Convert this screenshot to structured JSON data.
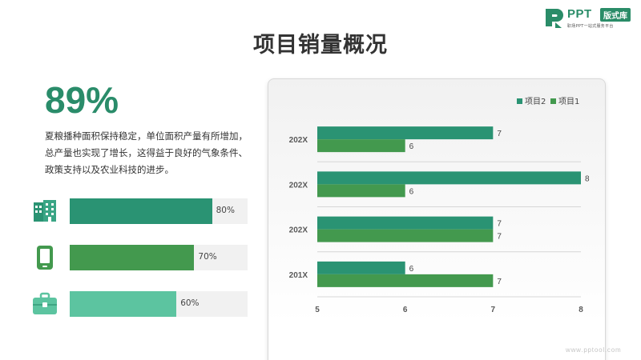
{
  "logo": {
    "brand": "PPT",
    "badge": "版式库",
    "tagline": "职场PPT一站式服务平台"
  },
  "title": "项目销量概况",
  "highlight": {
    "value": "89%",
    "description": "夏粮播种面积保持稳定，单位面积产量有所增加，总产量也实现了增长，这得益于良好的气象条件、政策支持以及农业科技的进步。"
  },
  "progress": [
    {
      "icon": "building-icon",
      "value": 80,
      "label": "80%",
      "color": "#2a9373"
    },
    {
      "icon": "tablet-icon",
      "value": 70,
      "label": "70%",
      "color": "#43994e"
    },
    {
      "icon": "briefcase-icon",
      "value": 60,
      "label": "60%",
      "color": "#5cc4a0"
    }
  ],
  "chart_data": {
    "type": "bar",
    "orientation": "horizontal",
    "categories": [
      "202X",
      "202X",
      "202X",
      "201X"
    ],
    "series": [
      {
        "name": "项目2",
        "values": [
          7,
          8,
          7,
          6
        ],
        "color": "#2a9373"
      },
      {
        "name": "项目1",
        "values": [
          6,
          6,
          7,
          7
        ],
        "color": "#43994e"
      }
    ],
    "xlim": [
      5,
      8
    ],
    "xticks": [
      "5",
      "6",
      "7",
      "8"
    ],
    "grid": true,
    "legend": "top-right",
    "data_labels": true
  },
  "watermark": "www.pptool.com"
}
